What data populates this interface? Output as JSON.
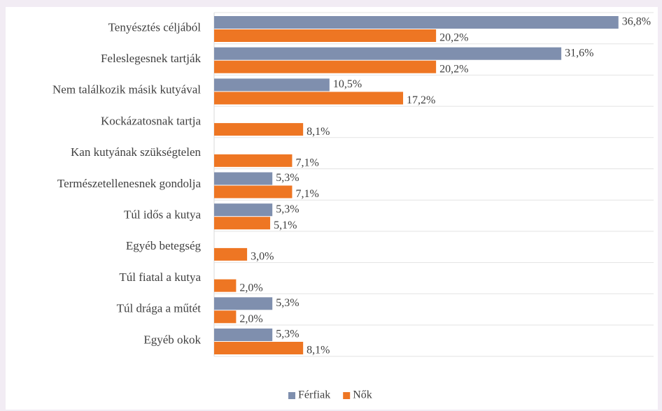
{
  "chart_data": {
    "type": "hbar",
    "categories": [
      "Tenyésztés céljából",
      "Feleslegesnek tartják",
      "Nem találkozik másik kutyával",
      "Kockázatosnak tartja",
      "Kan kutyának szükségtelen",
      "Természetellenesnek gondolja",
      "Túl idős a kutya",
      "Egyéb betegség",
      "Túl fiatal a kutya",
      "Túl drága a műtét",
      "Egyéb okok"
    ],
    "series": [
      {
        "name": "Férfiak",
        "color": "#7f8fae",
        "values": [
          36.8,
          31.6,
          10.5,
          null,
          null,
          5.3,
          5.3,
          null,
          null,
          5.3,
          5.3
        ],
        "value_labels": [
          "36,8%",
          "31,6%",
          "10,5%",
          null,
          null,
          "5,3%",
          "5,3%",
          null,
          null,
          "5,3%",
          "5,3%"
        ]
      },
      {
        "name": "Nők",
        "color": "#ee7623",
        "values": [
          20.2,
          20.2,
          17.2,
          8.1,
          7.1,
          7.1,
          5.1,
          3.0,
          2.0,
          2.0,
          8.1
        ],
        "value_labels": [
          "20,2%",
          "20,2%",
          "17,2%",
          "8,1%",
          "7,1%",
          "7,1%",
          "5,1%",
          "3,0%",
          "2,0%",
          "2,0%",
          "8,1%"
        ]
      }
    ],
    "xlim": [
      0,
      40
    ],
    "legend": "bottom"
  }
}
